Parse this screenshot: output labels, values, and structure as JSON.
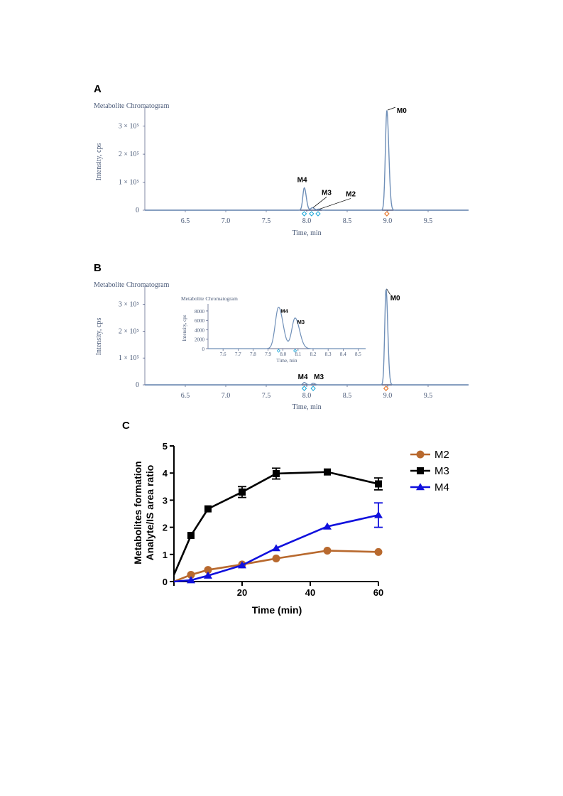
{
  "panels": {
    "a_label": "A",
    "b_label": "B",
    "c_label": "C"
  },
  "chart_data": [
    {
      "type": "line",
      "panel": "A",
      "title": "Metabolite Chromatogram",
      "xlabel": "Time, min",
      "ylabel": "Intensity, cps",
      "xlim": [
        6.0,
        10.0
      ],
      "ylim": [
        0,
        370000
      ],
      "x_ticks": [
        "6.5",
        "7.0",
        "7.5",
        "8.0",
        "8.5",
        "9.0",
        "9.5"
      ],
      "y_ticks": [
        {
          "value": 0,
          "label": "0"
        },
        {
          "value": 100000,
          "label": "1 × 10⁵"
        },
        {
          "value": 200000,
          "label": "2 × 10⁵"
        },
        {
          "value": 300000,
          "label": "3 × 10⁵"
        }
      ],
      "peaks": [
        {
          "name": "M4",
          "rt": 7.97,
          "height": 80000
        },
        {
          "name": "M3",
          "rt": 8.07,
          "height": 9000
        },
        {
          "name": "M2",
          "rt": 8.15,
          "height": 4000
        },
        {
          "name": "M0",
          "rt": 8.99,
          "height": 357000
        }
      ]
    },
    {
      "type": "line",
      "panel": "B",
      "title": "Metabolite Chromatogram",
      "xlabel": "Time, min",
      "ylabel": "Intensity, cps",
      "xlim": [
        6.0,
        10.0
      ],
      "ylim": [
        0,
        370000
      ],
      "x_ticks": [
        "6.5",
        "7.0",
        "7.5",
        "8.0",
        "8.5",
        "9.0",
        "9.5"
      ],
      "y_ticks": [
        {
          "value": 0,
          "label": "0"
        },
        {
          "value": 100000,
          "label": "1 × 10⁵"
        },
        {
          "value": 200000,
          "label": "2 × 10⁵"
        },
        {
          "value": 300000,
          "label": "3 × 10⁵"
        }
      ],
      "peaks": [
        {
          "name": "M4",
          "rt": 7.97,
          "height": 8800
        },
        {
          "name": "M3",
          "rt": 8.08,
          "height": 6500
        },
        {
          "name": "M0",
          "rt": 8.98,
          "height": 357000
        }
      ],
      "inset": {
        "title": "Metabolite Chromatogram",
        "xlabel": "Time, min",
        "ylabel": "Intensity, cps",
        "xlim": [
          7.5,
          8.55
        ],
        "ylim": [
          0,
          9500
        ],
        "x_ticks": [
          "7.6",
          "7.7",
          "7.8",
          "7.9",
          "8.0",
          "8.1",
          "8.2",
          "8.3",
          "8.4",
          "8.5"
        ],
        "y_ticks": [
          {
            "value": 0,
            "label": "0"
          },
          {
            "value": 2000,
            "label": "2000"
          },
          {
            "value": 4000,
            "label": "4000"
          },
          {
            "value": 6000,
            "label": "6000"
          },
          {
            "value": 8000,
            "label": "8000"
          }
        ],
        "peaks": [
          {
            "name": "M4",
            "rt": 7.97,
            "height": 8800
          },
          {
            "name": "M3",
            "rt": 8.08,
            "height": 6500
          }
        ]
      }
    },
    {
      "type": "line",
      "panel": "C",
      "xlabel": "Time (min)",
      "ylabel": "Metabolites formation\nAnalyte/IS area ratio",
      "ylabel_lines": [
        "Metabolites formation",
        "Analyte/IS area ratio"
      ],
      "xlim": [
        0,
        60
      ],
      "ylim": [
        0,
        5
      ],
      "x_ticks": [
        "0",
        "20",
        "40",
        "60"
      ],
      "y_ticks": [
        "0",
        "1",
        "2",
        "3",
        "4",
        "5"
      ],
      "x": [
        0,
        5,
        10,
        20,
        30,
        45,
        60
      ],
      "series": [
        {
          "name": "M2",
          "color": "#b8692e",
          "marker": "circle",
          "values": [
            0,
            0.25,
            0.43,
            0.63,
            0.85,
            1.14,
            1.09
          ],
          "errors": [
            0,
            0,
            0,
            0,
            0,
            0,
            0
          ]
        },
        {
          "name": "M3",
          "color": "#000000",
          "marker": "square",
          "values": [
            0.25,
            1.7,
            2.68,
            3.3,
            3.98,
            4.04,
            3.6
          ],
          "errors": [
            0,
            0,
            0,
            0.2,
            0.2,
            0,
            0.22
          ]
        },
        {
          "name": "M4",
          "color": "#1010dd",
          "marker": "triangle",
          "values": [
            0,
            0.05,
            0.22,
            0.6,
            1.23,
            2.03,
            2.45
          ],
          "errors": [
            0,
            0,
            0,
            0,
            0,
            0,
            0.45
          ]
        }
      ],
      "legend_position": "top-right",
      "grid": false
    }
  ]
}
